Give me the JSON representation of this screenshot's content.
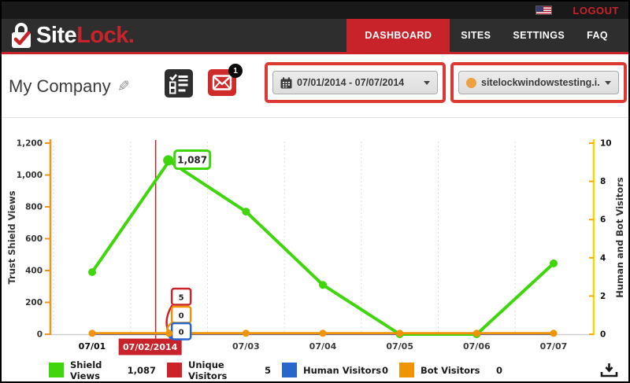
{
  "header": {
    "logout": "LOGOUT",
    "brand": {
      "site": "Site",
      "lock": "Lock."
    },
    "nav": [
      {
        "label": "DASHBOARD",
        "active": true
      },
      {
        "label": "SITES",
        "active": false
      },
      {
        "label": "SETTINGS",
        "active": false
      },
      {
        "label": "FAQ",
        "active": false
      }
    ]
  },
  "toolbar": {
    "company_name": "My Company",
    "mail_badge": "1",
    "date_range": "07/01/2014 - 07/07/2014",
    "site_selector": "sitelockwindowstesting.i.."
  },
  "colors": {
    "accent_red": "#c8232b",
    "shield_green": "#3fd60c",
    "unique_red": "#cc2229",
    "human_blue": "#2966cc",
    "bot_orange": "#ee9405",
    "axis_left_orange": "#f6921e",
    "axis_right_yellow": "#ffd400"
  },
  "chart_data": {
    "type": "line",
    "categories": [
      "07/01",
      "07/02",
      "07/03",
      "07/04",
      "07/05",
      "07/06",
      "07/07"
    ],
    "highlight_index": 1,
    "highlighted_label": "07/02/2014",
    "series": [
      {
        "name": "Shield Views",
        "color": "#3fd60c",
        "axis": "left",
        "values": [
          390,
          1087,
          770,
          310,
          0,
          0,
          445
        ]
      },
      {
        "name": "Unique Visitors",
        "color": "#cc2229",
        "axis": "right",
        "values": [
          0,
          5,
          0,
          0,
          0,
          0,
          0
        ]
      },
      {
        "name": "Human Visitors",
        "color": "#2966cc",
        "axis": "right",
        "values": [
          0,
          0,
          0,
          0,
          0,
          0,
          0
        ]
      },
      {
        "name": "Bot Visitors",
        "color": "#ee9405",
        "axis": "right",
        "values": [
          0,
          0,
          0,
          0,
          0,
          0,
          0
        ]
      }
    ],
    "tooltips": [
      {
        "series": "Shield Views",
        "value": "1,087"
      },
      {
        "series": "Unique Visitors",
        "value": "5"
      },
      {
        "series": "Bot Visitors",
        "value": "0"
      },
      {
        "series": "Human Visitors",
        "value": "0"
      }
    ],
    "y_left": {
      "title": "Trust Shield Views",
      "min": 0,
      "max": 1200,
      "step": 200,
      "tick_labels": [
        "0",
        "200",
        "400",
        "600",
        "800",
        "1,000",
        "1,200"
      ]
    },
    "y_right": {
      "title": "Human and Bot Visitors",
      "min": 0,
      "max": 10,
      "step": 2,
      "tick_labels": [
        "0",
        "2",
        "4",
        "6",
        "8",
        "10"
      ]
    },
    "grid": "vertical-dotted-between-categories",
    "legend_position": "bottom"
  },
  "legend": {
    "items": [
      {
        "label": "Shield Views",
        "value": "1,087",
        "color": "#3fd60c"
      },
      {
        "label": "Unique Visitors",
        "value": "5",
        "color": "#cc2229"
      },
      {
        "label": "Human Visitors",
        "value": "0",
        "color": "#2966cc"
      },
      {
        "label": "Bot Visitors",
        "value": "0",
        "color": "#ee9405"
      }
    ]
  }
}
